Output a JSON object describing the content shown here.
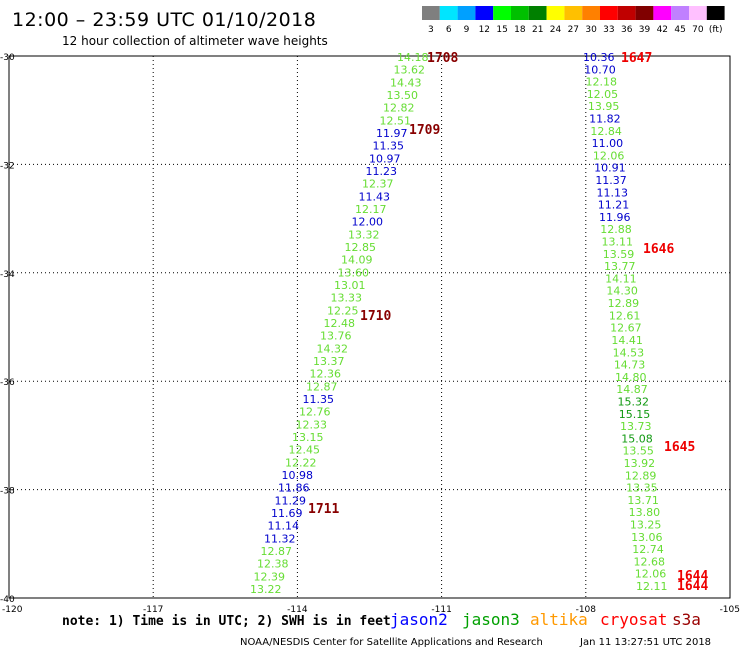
{
  "title": "12:00 – 23:59 UTC 01/10/2018",
  "subtitle": "12 hour collection of altimeter wave heights",
  "colorbar": {
    "labels": [
      "3",
      "6",
      "9",
      "12",
      "15",
      "18",
      "21",
      "24",
      "27",
      "30",
      "33",
      "36",
      "39",
      "42",
      "45",
      "70",
      "(ft)"
    ],
    "colors": [
      "#7f7f7f",
      "#00e5ff",
      "#00a0ff",
      "#0000ff",
      "#00ff00",
      "#00c000",
      "#008000",
      "#ffff00",
      "#ffc000",
      "#ff8000",
      "#ff0000",
      "#c00000",
      "#800000",
      "#ff00ff",
      "#c080ff",
      "#ffc0ff",
      "#000000"
    ]
  },
  "axes": {
    "lon_ticks": [
      "-120",
      "-117",
      "-114",
      "-111",
      "-108",
      "-105"
    ],
    "lat_ticks": [
      "-30",
      "-32",
      "-34",
      "-36",
      "-38",
      "-40"
    ]
  },
  "value_colors": {
    "g": "#66dd33",
    "b": "#0000cc",
    "d": "#119911"
  },
  "time_colors": {
    "dark": "#880000",
    "red": "#ee0000"
  },
  "track_a": {
    "values": [
      "14.18",
      "13.62",
      "14.43",
      "13.50",
      "12.82",
      "12.51",
      "11.97",
      "11.35",
      "10.97",
      "11.23",
      "12.37",
      "11.43",
      "12.17",
      "12.00",
      "13.32",
      "12.85",
      "14.09",
      "13.60",
      "13.01",
      "13.33",
      "12.25",
      "12.48",
      "13.76",
      "14.32",
      "13.37",
      "12.36",
      "12.87",
      "11.35",
      "12.76",
      "12.33",
      "13.15",
      "12.45",
      "12.22",
      "10.98",
      "11.86",
      "11.29",
      "11.69",
      "11.14",
      "11.32",
      "12.87",
      "12.38",
      "12.39",
      "13.22"
    ],
    "colors": [
      "g",
      "g",
      "g",
      "g",
      "g",
      "g",
      "b",
      "b",
      "b",
      "b",
      "g",
      "b",
      "g",
      "b",
      "g",
      "g",
      "g",
      "g",
      "g",
      "g",
      "g",
      "g",
      "g",
      "g",
      "g",
      "g",
      "g",
      "b",
      "g",
      "g",
      "g",
      "g",
      "g",
      "b",
      "b",
      "b",
      "b",
      "b",
      "b",
      "g",
      "g",
      "g",
      "g"
    ]
  },
  "track_b": {
    "values": [
      "10.36",
      "10.70",
      "12.18",
      "12.05",
      "13.95",
      "11.82",
      "12.84",
      "11.00",
      "12.06",
      "10.91",
      "11.37",
      "11.13",
      "11.21",
      "11.96",
      "12.88",
      "13.11",
      "13.59",
      "13.77",
      "14.11",
      "14.30",
      "12.89",
      "12.61",
      "12.67",
      "14.41",
      "14.53",
      "14.73",
      "14.80",
      "14.87",
      "15.32",
      "15.15",
      "13.73",
      "15.08",
      "13.55",
      "13.92",
      "12.89",
      "13.35",
      "13.71",
      "13.80",
      "13.25",
      "13.06",
      "12.74",
      "12.68",
      "12.06",
      "12.11"
    ],
    "colors": [
      "b",
      "b",
      "g",
      "g",
      "g",
      "b",
      "g",
      "b",
      "g",
      "b",
      "b",
      "b",
      "b",
      "b",
      "g",
      "g",
      "g",
      "g",
      "g",
      "g",
      "g",
      "g",
      "g",
      "g",
      "g",
      "g",
      "g",
      "g",
      "d",
      "d",
      "g",
      "d",
      "g",
      "g",
      "g",
      "g",
      "g",
      "g",
      "g",
      "g",
      "g",
      "g",
      "g",
      "g"
    ]
  },
  "times": [
    {
      "label": "1708",
      "color": "dark"
    },
    {
      "label": "1709",
      "color": "dark"
    },
    {
      "label": "1710",
      "color": "dark"
    },
    {
      "label": "1711",
      "color": "dark"
    },
    {
      "label": "1647",
      "color": "red"
    },
    {
      "label": "1646",
      "color": "red"
    },
    {
      "label": "1645",
      "color": "red"
    },
    {
      "label": "1644",
      "color": "red"
    },
    {
      "label": "1644",
      "color": "red"
    }
  ],
  "note": "note: 1) Time is in UTC; 2) SWH is in feet",
  "satellites": [
    {
      "name": "jason2",
      "color": "#0000ff"
    },
    {
      "name": "jason3",
      "color": "#00a000"
    },
    {
      "name": "altika",
      "color": "#ff9900"
    },
    {
      "name": "cryosat",
      "color": "#ff0000"
    },
    {
      "name": "s3a",
      "color": "#990000"
    }
  ],
  "footer_left": "NOAA/NESDIS Center for Satellite Applications and Research",
  "footer_right": "Jan 11 13:27:51 UTC 2018"
}
